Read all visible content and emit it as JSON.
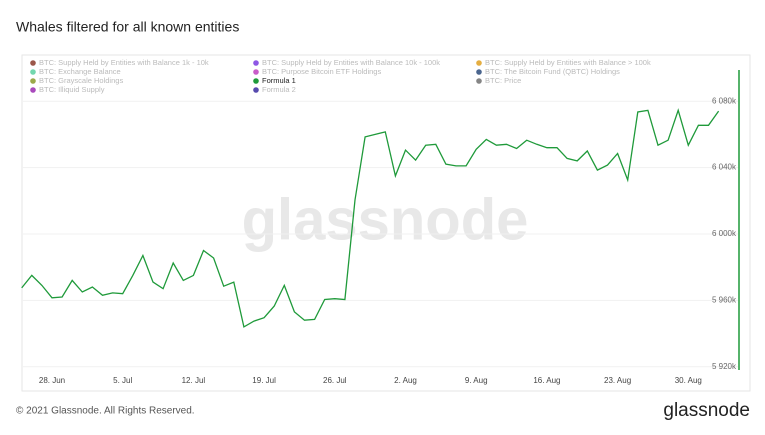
{
  "chart_data": {
    "type": "line",
    "title": "Whales filtered for all known entities",
    "watermark": "glassnode",
    "footer": "© 2021 Glassnode. All Rights Reserved.",
    "brand": "glassnode",
    "categories": [
      null,
      null,
      null,
      "28. Jun",
      null,
      null,
      null,
      null,
      null,
      null,
      "5. Jul",
      null,
      null,
      null,
      null,
      null,
      null,
      "12. Jul",
      null,
      null,
      null,
      null,
      null,
      null,
      "19. Jul",
      null,
      null,
      null,
      null,
      null,
      null,
      "26. Jul",
      null,
      null,
      null,
      null,
      null,
      null,
      "2. Aug",
      null,
      null,
      null,
      null,
      null,
      null,
      "9. Aug",
      null,
      null,
      null,
      null,
      null,
      null,
      "16. Aug",
      null,
      null,
      null,
      null,
      null,
      null,
      "23. Aug",
      null,
      null,
      null,
      null,
      null,
      null,
      "30. Aug",
      null,
      null,
      null
    ],
    "series": [
      {
        "name": "BTC: Supply Held by Entities with Balance 1k - 10k",
        "color": "#8b3a2a",
        "hidden": true
      },
      {
        "name": "BTC: Supply Held by Entities with Balance 10k - 100k",
        "color": "#7a3ae0",
        "hidden": true
      },
      {
        "name": "BTC: Supply Held by Entities with Balance > 100k",
        "color": "#e0a020",
        "hidden": true
      },
      {
        "name": "BTC: Exchange Balance",
        "color": "#5ad0a0",
        "hidden": true
      },
      {
        "name": "BTC: Purpose Bitcoin ETF Holdings",
        "color": "#c040c0",
        "hidden": true
      },
      {
        "name": "BTC: The Bitcoin Fund (QBTC) Holdings",
        "color": "#2a4a7a",
        "hidden": true
      },
      {
        "name": "BTC: Grayscale Holdings",
        "color": "#8a9a2a",
        "hidden": true
      },
      {
        "name": "Formula 1",
        "color": "#1f9a3a",
        "hidden": false,
        "values": [
          5967500,
          5975000,
          5969000,
          5961500,
          5962000,
          5972000,
          5965000,
          5968000,
          5963000,
          5964500,
          5964000,
          5975000,
          5987000,
          5971000,
          5967000,
          5982500,
          5972000,
          5975000,
          5990000,
          5985500,
          5968500,
          5971000,
          5944000,
          5947500,
          5949500,
          5956500,
          5969000,
          5953000,
          5948000,
          5948500,
          5960500,
          5961000,
          5960500,
          6020500,
          6058500,
          6060000,
          6061500,
          6035000,
          6050500,
          6044500,
          6053500,
          6054000,
          6042000,
          6041000,
          6041000,
          6051000,
          6057000,
          6053500,
          6054000,
          6051500,
          6056500,
          6054000,
          6052000,
          6052000,
          6045500,
          6044000,
          6050000,
          6038500,
          6041500,
          6048500,
          6032500,
          6073500,
          6074500,
          6053500,
          6056500,
          6074500,
          6053500,
          6065500,
          6065500,
          6074000
        ]
      },
      {
        "name": "BTC: Price",
        "color": "#707070",
        "hidden": true
      },
      {
        "name": "BTC: Illiquid Supply",
        "color": "#9a2ab0",
        "hidden": true
      },
      {
        "name": "Formula 2",
        "color": "#3a2aa0",
        "hidden": true
      }
    ],
    "ylim": [
      5915000,
      6100000
    ],
    "yticks": [
      {
        "value": 5920000,
        "label": "5 920k"
      },
      {
        "value": 5960000,
        "label": "5 960k"
      },
      {
        "value": 6000000,
        "label": "6 000k"
      },
      {
        "value": 6040000,
        "label": "6 040k"
      },
      {
        "value": 6080000,
        "label": "6 080k"
      }
    ],
    "grid": true
  }
}
